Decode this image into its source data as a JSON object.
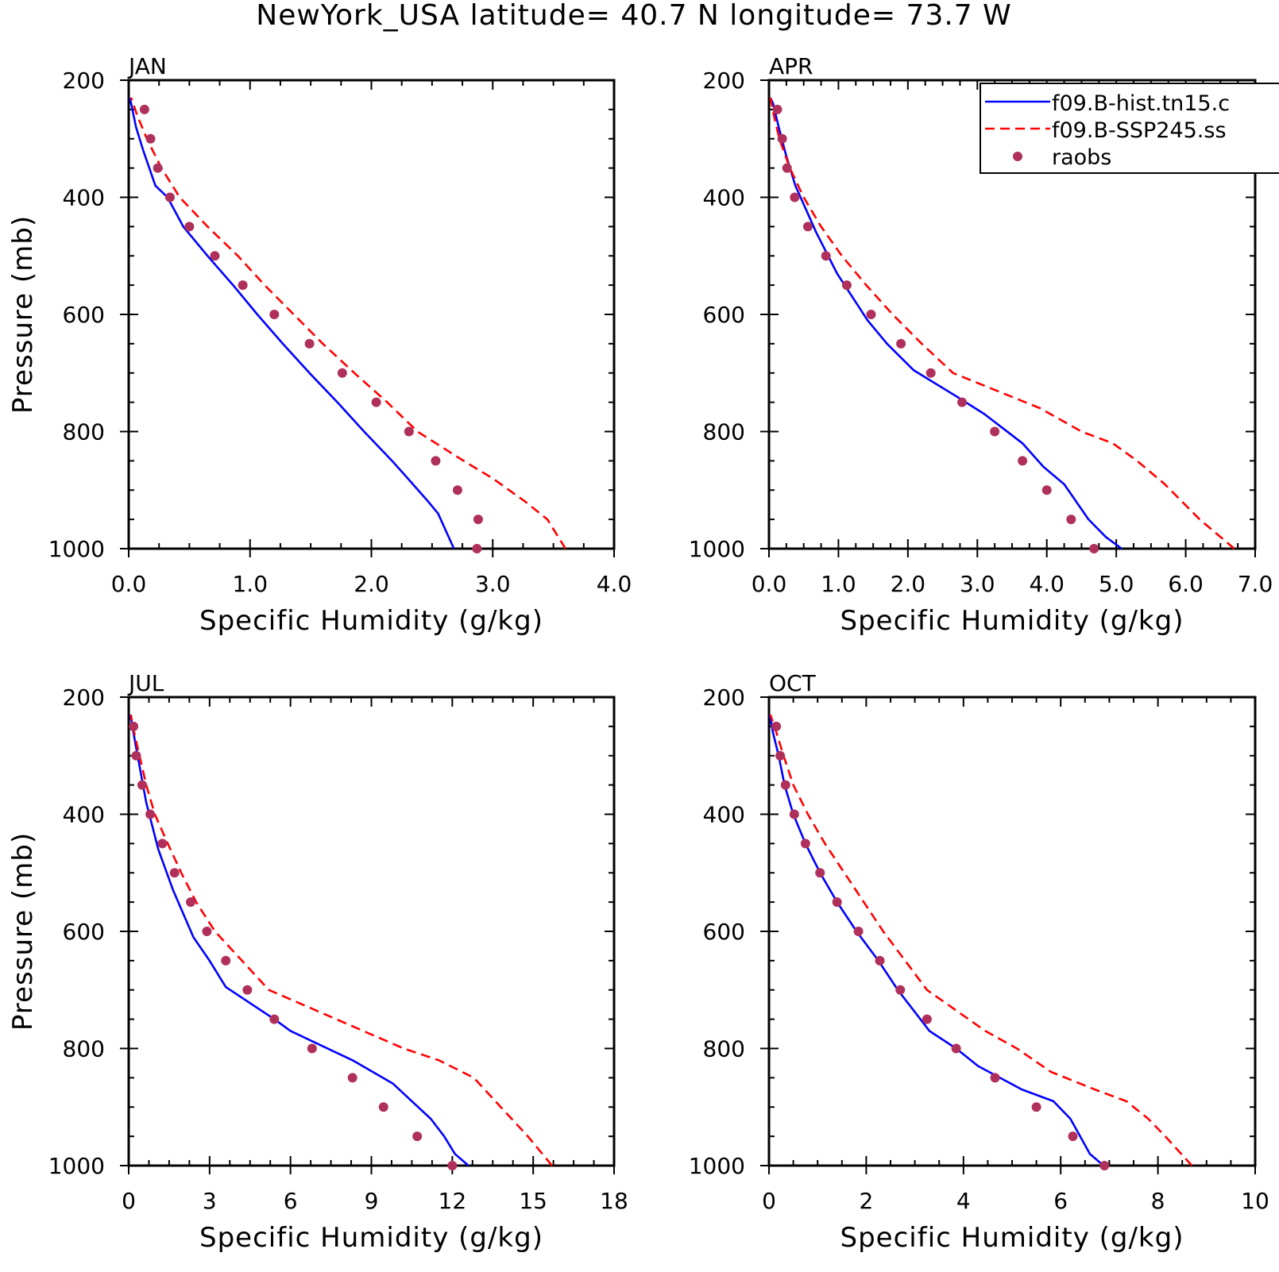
{
  "title": "NewYork_USA  latitude= 40.7 N longitude= 73.7 W",
  "colors": {
    "hist": "#0000ff",
    "ssp": "#ff0000",
    "raobs": "#b0305c"
  },
  "legend": [
    "f09.B-hist.tn15.c",
    "f09.B-SSP245.ss",
    "raobs"
  ],
  "chart_data": [
    {
      "type": "line",
      "title": "JAN",
      "xlabel": "Specific Humidity (g/kg)",
      "ylabel": "Pressure (mb)",
      "xlim": [
        0,
        4.0
      ],
      "ylim": [
        200,
        1000
      ],
      "y_inverted": true,
      "xticks": [
        "0.0",
        "1.0",
        "2.0",
        "3.0",
        "4.0"
      ],
      "yticks": [
        "200",
        "400",
        "600",
        "800",
        "1000"
      ],
      "series": [
        {
          "name": "f09.B-hist.tn15.c",
          "style": "solid",
          "pressure": [
            1000,
            940,
            920,
            880,
            850,
            800,
            750,
            700,
            650,
            600,
            550,
            500,
            450,
            400,
            380,
            320,
            280,
            240,
            230
          ],
          "values": [
            2.68,
            2.55,
            2.47,
            2.3,
            2.17,
            1.94,
            1.72,
            1.49,
            1.27,
            1.06,
            0.86,
            0.65,
            0.45,
            0.32,
            0.22,
            0.12,
            0.06,
            0.02,
            0.01
          ]
        },
        {
          "name": "f09.B-SSP245.ss",
          "style": "dashed",
          "pressure": [
            1000,
            950,
            920,
            880,
            850,
            800,
            750,
            700,
            650,
            600,
            550,
            500,
            450,
            400,
            350,
            300,
            260,
            230
          ],
          "values": [
            3.6,
            3.45,
            3.27,
            3.0,
            2.76,
            2.38,
            2.13,
            1.86,
            1.6,
            1.36,
            1.12,
            0.9,
            0.65,
            0.42,
            0.27,
            0.15,
            0.07,
            0.02
          ]
        },
        {
          "name": "raobs",
          "style": "markers",
          "pressure": [
            1000,
            950,
            900,
            850,
            800,
            750,
            700,
            650,
            600,
            550,
            500,
            450,
            400,
            350,
            300,
            250
          ],
          "values": [
            2.87,
            2.88,
            2.71,
            2.53,
            2.31,
            2.04,
            1.76,
            1.49,
            1.2,
            0.94,
            0.71,
            0.5,
            0.34,
            0.24,
            0.18,
            0.13
          ]
        }
      ]
    },
    {
      "type": "line",
      "title": "APR",
      "xlabel": "Specific Humidity (g/kg)",
      "ylabel": "",
      "xlim": [
        0,
        7.0
      ],
      "ylim": [
        200,
        1000
      ],
      "y_inverted": true,
      "xticks": [
        "0.0",
        "1.0",
        "2.0",
        "3.0",
        "4.0",
        "5.0",
        "6.0",
        "7.0"
      ],
      "yticks": [
        "200",
        "400",
        "600",
        "800",
        "1000"
      ],
      "series": [
        {
          "name": "f09.B-hist.tn15.c",
          "style": "solid",
          "pressure": [
            1000,
            980,
            950,
            890,
            860,
            820,
            770,
            740,
            695,
            650,
            610,
            530,
            460,
            380,
            330,
            280,
            240,
            230
          ],
          "values": [
            5.08,
            4.85,
            4.6,
            4.25,
            3.95,
            3.65,
            3.1,
            2.7,
            2.08,
            1.7,
            1.42,
            0.98,
            0.68,
            0.38,
            0.25,
            0.14,
            0.06,
            0.02
          ]
        },
        {
          "name": "f09.B-SSP245.ss",
          "style": "dashed",
          "pressure": [
            1000,
            950,
            890,
            850,
            820,
            800,
            760,
            700,
            650,
            600,
            550,
            500,
            450,
            400,
            350,
            300,
            260,
            230
          ],
          "values": [
            6.7,
            6.2,
            5.7,
            5.3,
            4.95,
            4.5,
            3.9,
            2.65,
            2.2,
            1.78,
            1.4,
            1.05,
            0.75,
            0.5,
            0.3,
            0.15,
            0.07,
            0.02
          ]
        },
        {
          "name": "raobs",
          "style": "markers",
          "pressure": [
            1000,
            950,
            900,
            850,
            800,
            750,
            700,
            650,
            600,
            550,
            500,
            450,
            400,
            350,
            300,
            250
          ],
          "values": [
            4.68,
            4.35,
            4.0,
            3.65,
            3.25,
            2.78,
            2.33,
            1.9,
            1.47,
            1.12,
            0.82,
            0.56,
            0.37,
            0.26,
            0.19,
            0.12
          ]
        }
      ]
    },
    {
      "type": "line",
      "title": "JUL",
      "xlabel": "Specific Humidity (g/kg)",
      "ylabel": "Pressure (mb)",
      "xlim": [
        0,
        18
      ],
      "ylim": [
        200,
        1000
      ],
      "y_inverted": true,
      "xticks": [
        "0",
        "3",
        "6",
        "9",
        "12",
        "15",
        "18"
      ],
      "yticks": [
        "200",
        "400",
        "600",
        "800",
        "1000"
      ],
      "series": [
        {
          "name": "f09.B-hist.tn15.c",
          "style": "solid",
          "pressure": [
            1000,
            980,
            950,
            920,
            890,
            860,
            820,
            770,
            750,
            695,
            650,
            610,
            530,
            460,
            380,
            330,
            280,
            240,
            230
          ],
          "values": [
            12.6,
            12.1,
            11.7,
            11.2,
            10.5,
            9.8,
            8.3,
            6.0,
            5.4,
            3.6,
            3.0,
            2.4,
            1.65,
            1.1,
            0.65,
            0.45,
            0.25,
            0.1,
            0.05
          ]
        },
        {
          "name": "f09.B-SSP245.ss",
          "style": "dashed",
          "pressure": [
            1000,
            950,
            890,
            850,
            820,
            800,
            760,
            700,
            650,
            600,
            550,
            500,
            450,
            400,
            350,
            300,
            260,
            230
          ],
          "values": [
            15.7,
            14.8,
            13.6,
            12.8,
            11.5,
            10.2,
            8.2,
            5.2,
            4.2,
            3.2,
            2.5,
            1.95,
            1.45,
            0.97,
            0.65,
            0.4,
            0.2,
            0.08
          ]
        },
        {
          "name": "raobs",
          "style": "markers",
          "pressure": [
            1000,
            950,
            900,
            850,
            800,
            750,
            700,
            650,
            600,
            550,
            500,
            450,
            400,
            350,
            300,
            250
          ],
          "values": [
            12.0,
            10.7,
            9.45,
            8.3,
            6.8,
            5.4,
            4.4,
            3.6,
            2.9,
            2.3,
            1.7,
            1.25,
            0.8,
            0.5,
            0.28,
            0.18
          ]
        }
      ]
    },
    {
      "type": "line",
      "title": "OCT",
      "xlabel": "Specific Humidity (g/kg)",
      "ylabel": "",
      "xlim": [
        0,
        10
      ],
      "ylim": [
        200,
        1000
      ],
      "y_inverted": true,
      "xticks": [
        "0",
        "2",
        "4",
        "6",
        "8",
        "10"
      ],
      "yticks": [
        "200",
        "400",
        "600",
        "800",
        "1000"
      ],
      "series": [
        {
          "name": "f09.B-hist.tn15.c",
          "style": "solid",
          "pressure": [
            1000,
            980,
            950,
            920,
            890,
            870,
            830,
            800,
            770,
            700,
            650,
            600,
            550,
            500,
            450,
            400,
            350,
            300,
            260,
            230
          ],
          "values": [
            6.88,
            6.6,
            6.4,
            6.2,
            5.85,
            5.2,
            4.3,
            3.85,
            3.3,
            2.65,
            2.25,
            1.8,
            1.4,
            1.05,
            0.75,
            0.5,
            0.32,
            0.2,
            0.08,
            0.02
          ]
        },
        {
          "name": "f09.B-SSP245.ss",
          "style": "dashed",
          "pressure": [
            1000,
            950,
            920,
            890,
            870,
            840,
            800,
            770,
            700,
            650,
            600,
            550,
            500,
            450,
            400,
            350,
            300,
            260,
            230
          ],
          "values": [
            8.7,
            8.15,
            7.8,
            7.35,
            6.7,
            5.8,
            5.1,
            4.45,
            3.25,
            2.8,
            2.35,
            1.95,
            1.55,
            1.15,
            0.8,
            0.5,
            0.3,
            0.15,
            0.03
          ]
        },
        {
          "name": "raobs",
          "style": "markers",
          "pressure": [
            1000,
            950,
            900,
            850,
            800,
            750,
            700,
            650,
            600,
            550,
            500,
            450,
            400,
            350,
            300,
            250
          ],
          "values": [
            6.9,
            6.25,
            5.5,
            4.65,
            3.85,
            3.25,
            2.7,
            2.28,
            1.84,
            1.4,
            1.05,
            0.75,
            0.52,
            0.34,
            0.23,
            0.15
          ]
        }
      ]
    }
  ]
}
